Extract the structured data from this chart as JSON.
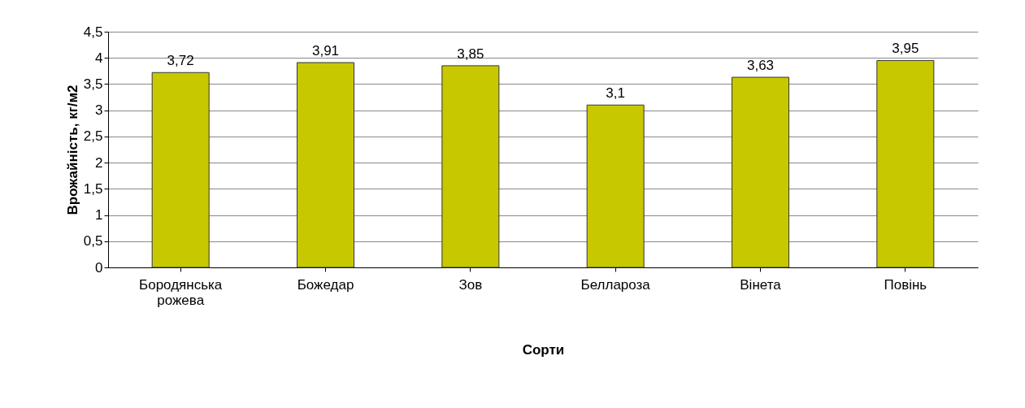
{
  "chart_data": {
    "type": "bar",
    "categories": [
      "Бородянська рожева",
      "Божедар",
      "Зов",
      "Беллароза",
      "Вінета",
      "Повінь"
    ],
    "values": [
      3.72,
      3.91,
      3.85,
      3.1,
      3.63,
      3.95
    ],
    "value_labels": [
      "3,72",
      "3,91",
      "3,85",
      "3,1",
      "3,63",
      "3,95"
    ],
    "color": "#c8c800",
    "xlabel": "Сорти",
    "ylabel": "Врожайність, кг/м2",
    "ylim": [
      0,
      4.5
    ],
    "yticks": [
      0,
      {
        "value": 0.5,
        "label": "0,5"
      },
      1,
      {
        "value": 1.5,
        "label": "1,5"
      },
      2,
      {
        "value": 2.5,
        "label": "2,5"
      },
      3,
      {
        "value": 3.5,
        "label": "3,5"
      },
      4,
      {
        "value": 4.5,
        "label": "4,5"
      }
    ],
    "grid": "y"
  }
}
